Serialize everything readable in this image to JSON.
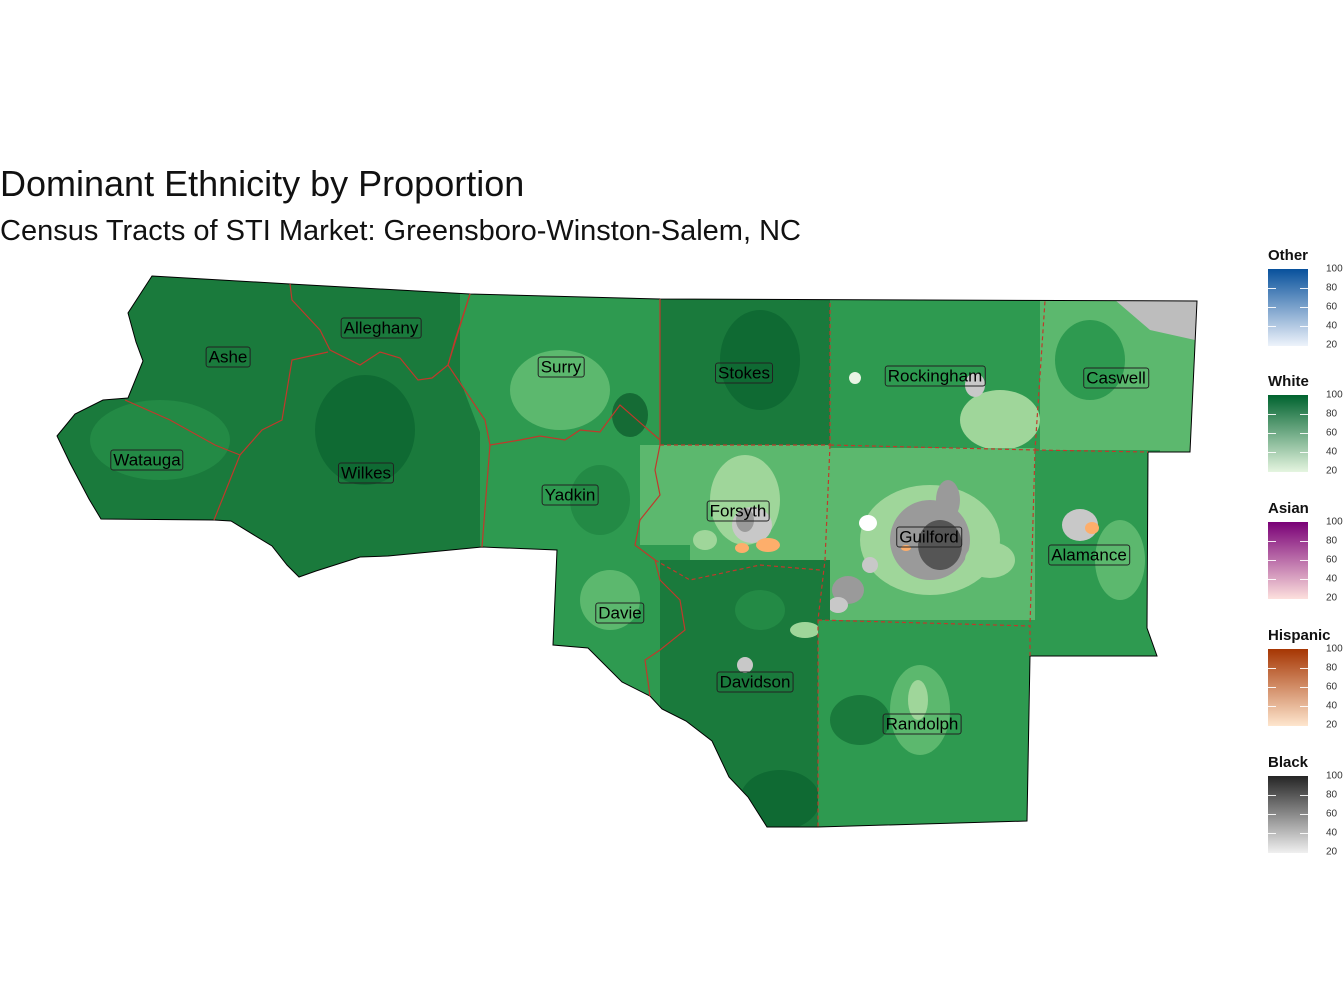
{
  "title": "Dominant Ethnicity by Proportion",
  "subtitle": "Census Tracts of STI Market: Greensboro-Winston-Salem, NC",
  "counties": [
    {
      "name": "Ashe"
    },
    {
      "name": "Alleghany"
    },
    {
      "name": "Surry"
    },
    {
      "name": "Stokes"
    },
    {
      "name": "Rockingham"
    },
    {
      "name": "Caswell"
    },
    {
      "name": "Watauga"
    },
    {
      "name": "Wilkes"
    },
    {
      "name": "Yadkin"
    },
    {
      "name": "Forsyth"
    },
    {
      "name": "Guilford"
    },
    {
      "name": "Alamance"
    },
    {
      "name": "Davie"
    },
    {
      "name": "Davidson"
    },
    {
      "name": "Randolph"
    }
  ],
  "legend": [
    {
      "title": "Other",
      "ticks": [
        "100",
        "80",
        "60",
        "40",
        "20"
      ],
      "color_low": "#eef3fb",
      "color_high": "#08519c"
    },
    {
      "title": "White",
      "ticks": [
        "100",
        "80",
        "60",
        "40",
        "20"
      ],
      "color_low": "#e5f5e0",
      "color_high": "#00632f"
    },
    {
      "title": "Asian",
      "ticks": [
        "100",
        "80",
        "60",
        "40",
        "20"
      ],
      "color_low": "#fde0dd",
      "color_high": "#7a0177"
    },
    {
      "title": "Hispanic",
      "ticks": [
        "100",
        "80",
        "60",
        "40",
        "20"
      ],
      "color_low": "#fee6ce",
      "color_high": "#a63603"
    },
    {
      "title": "Black",
      "ticks": [
        "100",
        "80",
        "60",
        "40",
        "20"
      ],
      "color_low": "#f0f0f0",
      "color_high": "#252525"
    }
  ],
  "colors": {
    "county_border": "#c0392b",
    "white_dark": "#1a7a3c",
    "white_mid": "#2e9a50",
    "white_light": "#5cb86e",
    "white_pale": "#9fd69a",
    "black_high": "#555555",
    "black_mid": "#9a9a9a",
    "black_low": "#c8c8c8",
    "hispanic": "#fdae6b",
    "na_gray": "#bdbdbd"
  }
}
